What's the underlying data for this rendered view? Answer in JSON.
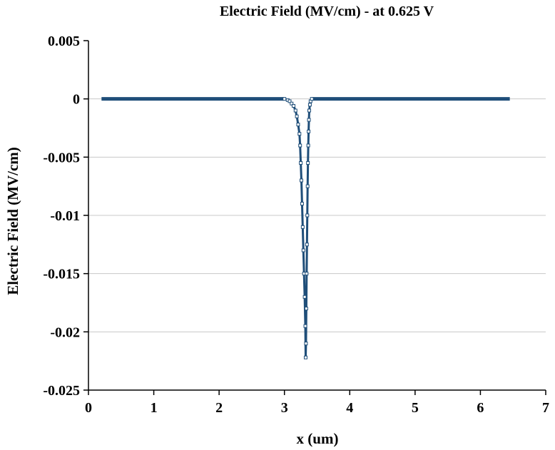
{
  "chart_data": {
    "type": "scatter",
    "title": "Electric Field (MV/cm) - at 0.625 V",
    "xlabel": "x (um)",
    "ylabel": "Electric Field (MV/cm)",
    "xlim": [
      0,
      7
    ],
    "ylim": [
      -0.025,
      0.005
    ],
    "xticks": [
      0,
      1,
      2,
      3,
      4,
      5,
      6,
      7
    ],
    "xtick_labels": [
      "0",
      "1",
      "2",
      "3",
      "4",
      "5",
      "6",
      "7"
    ],
    "yticks": [
      0.005,
      0,
      -0.005,
      -0.01,
      -0.015,
      -0.02,
      -0.025
    ],
    "ytick_labels": [
      "0.005",
      "0",
      "-0.005",
      "-0.01",
      "-0.015",
      "-0.02",
      "-0.025"
    ],
    "grid": "horizontal",
    "legend": "none",
    "series": [
      {
        "color": "#1f4e79",
        "x": [
          0.2,
          0.6,
          1.0,
          1.5,
          2.0,
          2.5,
          2.9,
          3.0,
          3.05,
          3.08,
          3.11,
          3.14,
          3.17,
          3.19,
          3.21,
          3.23,
          3.24,
          3.25,
          3.26,
          3.27,
          3.28,
          3.29,
          3.3,
          3.31,
          3.32,
          3.325,
          3.33,
          3.335,
          3.34,
          3.345,
          3.35,
          3.355,
          3.36,
          3.365,
          3.37,
          3.375,
          3.38,
          3.39,
          3.4,
          3.42,
          3.45,
          3.5,
          4.0,
          4.5,
          5.0,
          5.5,
          6.0,
          6.45
        ],
        "y": [
          0,
          0,
          0,
          0,
          0,
          0,
          0,
          0,
          -0.0001,
          -0.0002,
          -0.0004,
          -0.0006,
          -0.001,
          -0.0015,
          -0.0022,
          -0.003,
          -0.004,
          -0.0055,
          -0.007,
          -0.009,
          -0.011,
          -0.013,
          -0.015,
          -0.017,
          -0.0195,
          -0.0222,
          -0.021,
          -0.018,
          -0.015,
          -0.0125,
          -0.01,
          -0.0075,
          -0.0055,
          -0.004,
          -0.0028,
          -0.0018,
          -0.001,
          -0.0005,
          -0.0002,
          0,
          0,
          0,
          0,
          0,
          0,
          0,
          0,
          0
        ]
      }
    ]
  }
}
